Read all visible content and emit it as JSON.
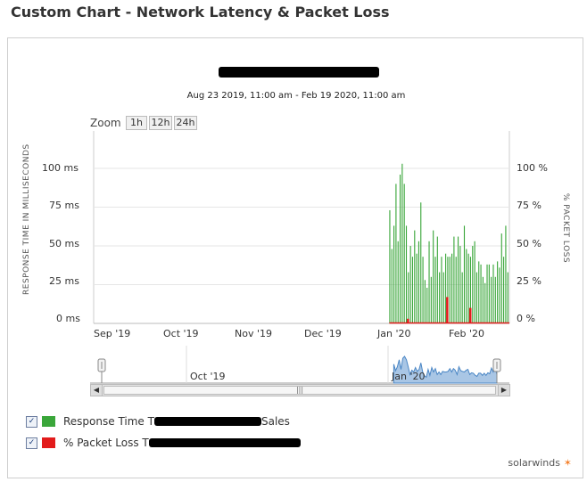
{
  "header": {
    "title": "Custom Chart - Network Latency & Packet Loss"
  },
  "chart": {
    "date_range": "Aug 23 2019, 11:00 am - Feb 19 2020, 11:00 am",
    "zoom": {
      "label": "Zoom",
      "options": [
        "1h",
        "12h",
        "24h"
      ]
    },
    "left_axis_title": "RESPONSE TIME IN MILLISECONDS",
    "right_axis_title": "% PACKET LOSS",
    "left_ticks": [
      "100 ms",
      "75 ms",
      "50 ms",
      "25 ms",
      "0 ms"
    ],
    "right_ticks": [
      "100 %",
      "75 %",
      "50 %",
      "25 %",
      "0 %"
    ],
    "x_ticks": [
      "Sep '19",
      "Oct '19",
      "Nov '19",
      "Dec '19",
      "Jan '20",
      "Feb '20"
    ],
    "navigator_label": "Oct '19",
    "navigator_label2": "Jan '20"
  },
  "legend": [
    {
      "label": "Response Time T",
      "suffix": "Sales",
      "color": "#3aa63a"
    },
    {
      "label": "% Packet Loss T",
      "suffix": "",
      "color": "#e21b1b"
    }
  ],
  "brand": {
    "name": "solarwinds"
  },
  "chart_data": {
    "type": "bar",
    "title": "",
    "ylabel": "RESPONSE TIME IN MILLISECONDS",
    "ylabel_right": "% PACKET LOSS",
    "ylim": [
      0,
      100
    ],
    "x_range": [
      "2019-08-23",
      "2020-02-19"
    ],
    "series": [
      {
        "name": "Response Time",
        "color": "#3aa63a",
        "start_date": "2019-12-29",
        "values": [
          73,
          48,
          63,
          90,
          53,
          96,
          103,
          90,
          63,
          33,
          50,
          43,
          60,
          45,
          53,
          78,
          43,
          28,
          23,
          53,
          30,
          60,
          43,
          56,
          33,
          43,
          33,
          45,
          43,
          43,
          45,
          56,
          43,
          56,
          50,
          33,
          63,
          48,
          45,
          43,
          50,
          53,
          33,
          40,
          38,
          30,
          26,
          38,
          38,
          30,
          38,
          30,
          40,
          36,
          58,
          43,
          63,
          33
        ]
      },
      {
        "name": "% Packet Loss",
        "color": "#e21b1b",
        "spikes": [
          {
            "date": "2020-01-06",
            "value": 3
          },
          {
            "date": "2020-01-23",
            "value": 17
          },
          {
            "date": "2020-02-02",
            "value": 10
          }
        ]
      }
    ]
  }
}
